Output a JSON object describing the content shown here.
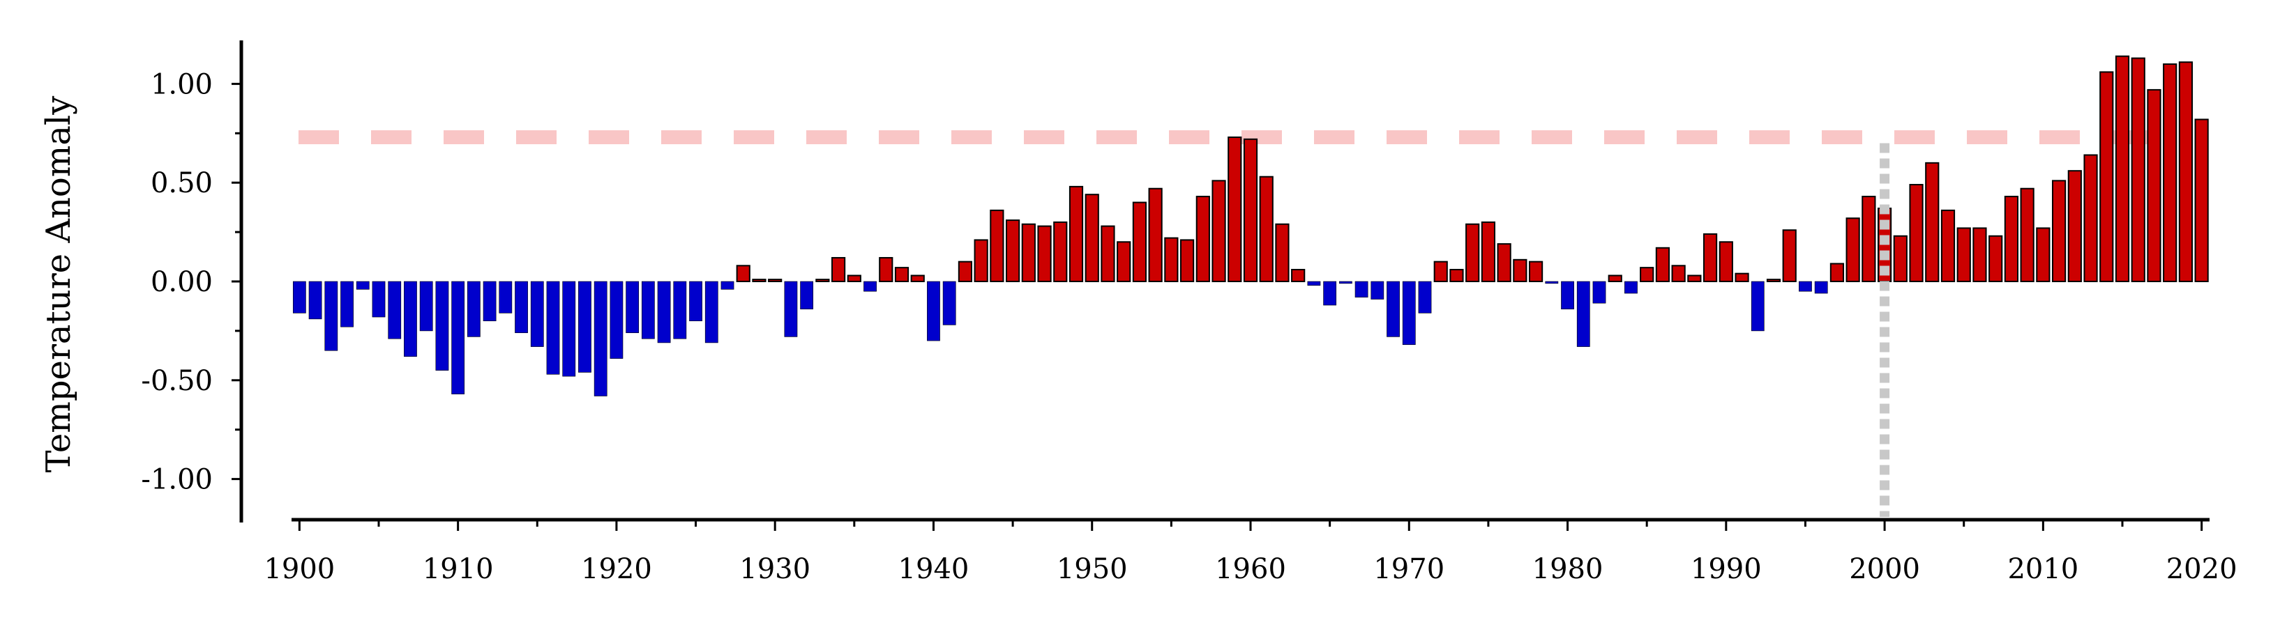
{
  "chart_data": {
    "type": "bar",
    "title": "",
    "xlabel": "",
    "ylabel": "Temperature Anomaly",
    "xlim": [
      1899.5,
      2020.5
    ],
    "ylim": [
      -1.22,
      1.22
    ],
    "xticks": [
      "1900",
      "1910",
      "1920",
      "1930",
      "1940",
      "1950",
      "1960",
      "1970",
      "1980",
      "1990",
      "2000",
      "2010",
      "2020"
    ],
    "yticks": [
      "1.00",
      "0.50",
      "0.00",
      "-0.50",
      "-1.00"
    ],
    "grid": false,
    "legend": "none",
    "colors": {
      "positive": "#cc0000",
      "negative": "#0000cc",
      "bar_edge": "#000000",
      "threshold_line": "#f9c6c6",
      "reference_line": "#c8c8c8"
    },
    "threshold_y": 0.73,
    "reference_x": 2000,
    "years": [
      1900,
      1901,
      1902,
      1903,
      1904,
      1905,
      1906,
      1907,
      1908,
      1909,
      1910,
      1911,
      1912,
      1913,
      1914,
      1915,
      1916,
      1917,
      1918,
      1919,
      1920,
      1921,
      1922,
      1923,
      1924,
      1925,
      1926,
      1927,
      1928,
      1929,
      1930,
      1931,
      1932,
      1933,
      1934,
      1935,
      1936,
      1937,
      1938,
      1939,
      1940,
      1941,
      1942,
      1943,
      1944,
      1945,
      1946,
      1947,
      1948,
      1949,
      1950,
      1951,
      1952,
      1953,
      1954,
      1955,
      1956,
      1957,
      1958,
      1959,
      1960,
      1961,
      1962,
      1963,
      1964,
      1965,
      1966,
      1967,
      1968,
      1969,
      1970,
      1971,
      1972,
      1973,
      1974,
      1975,
      1976,
      1977,
      1978,
      1979,
      1980,
      1981,
      1982,
      1983,
      1984,
      1985,
      1986,
      1987,
      1988,
      1989,
      1990,
      1991,
      1992,
      1993,
      1994,
      1995,
      1996,
      1997,
      1998,
      1999,
      2000,
      2001,
      2002,
      2003,
      2004,
      2005,
      2006,
      2007,
      2008,
      2009,
      2010,
      2011,
      2012,
      2013,
      2014,
      2015,
      2016,
      2017,
      2018,
      2019,
      2020
    ],
    "values": [
      -0.16,
      -0.19,
      -0.35,
      -0.23,
      -0.04,
      -0.18,
      -0.29,
      -0.38,
      -0.25,
      -0.45,
      -0.57,
      -0.28,
      -0.2,
      -0.16,
      -0.26,
      -0.33,
      -0.47,
      -0.48,
      -0.46,
      -0.58,
      -0.39,
      -0.26,
      -0.29,
      -0.31,
      -0.29,
      -0.2,
      -0.31,
      -0.04,
      0.08,
      0.01,
      0.01,
      -0.28,
      -0.14,
      0.01,
      0.12,
      0.03,
      -0.05,
      0.12,
      0.07,
      0.03,
      -0.3,
      -0.22,
      0.1,
      0.21,
      0.36,
      0.31,
      0.29,
      0.28,
      0.3,
      0.48,
      0.44,
      0.28,
      0.2,
      0.4,
      0.47,
      0.22,
      0.21,
      0.43,
      0.51,
      0.73,
      0.72,
      0.53,
      0.29,
      0.06,
      -0.02,
      -0.12,
      -0.01,
      -0.08,
      -0.09,
      -0.28,
      -0.32,
      -0.16,
      0.1,
      0.06,
      0.29,
      0.3,
      0.19,
      0.11,
      0.1,
      -0.01,
      -0.14,
      -0.33,
      -0.11,
      0.03,
      -0.06,
      0.07,
      0.17,
      0.08,
      0.03,
      0.24,
      0.2,
      0.04,
      -0.25,
      0.01,
      0.26,
      -0.05,
      -0.06,
      0.09,
      0.32,
      0.43,
      0.37,
      0.23,
      0.49,
      0.6,
      0.36,
      0.27,
      0.27,
      0.23,
      0.43,
      0.47,
      0.27,
      0.51,
      0.56,
      0.64,
      1.06,
      1.14,
      1.13,
      0.97,
      1.1,
      1.11,
      0.82
    ]
  }
}
